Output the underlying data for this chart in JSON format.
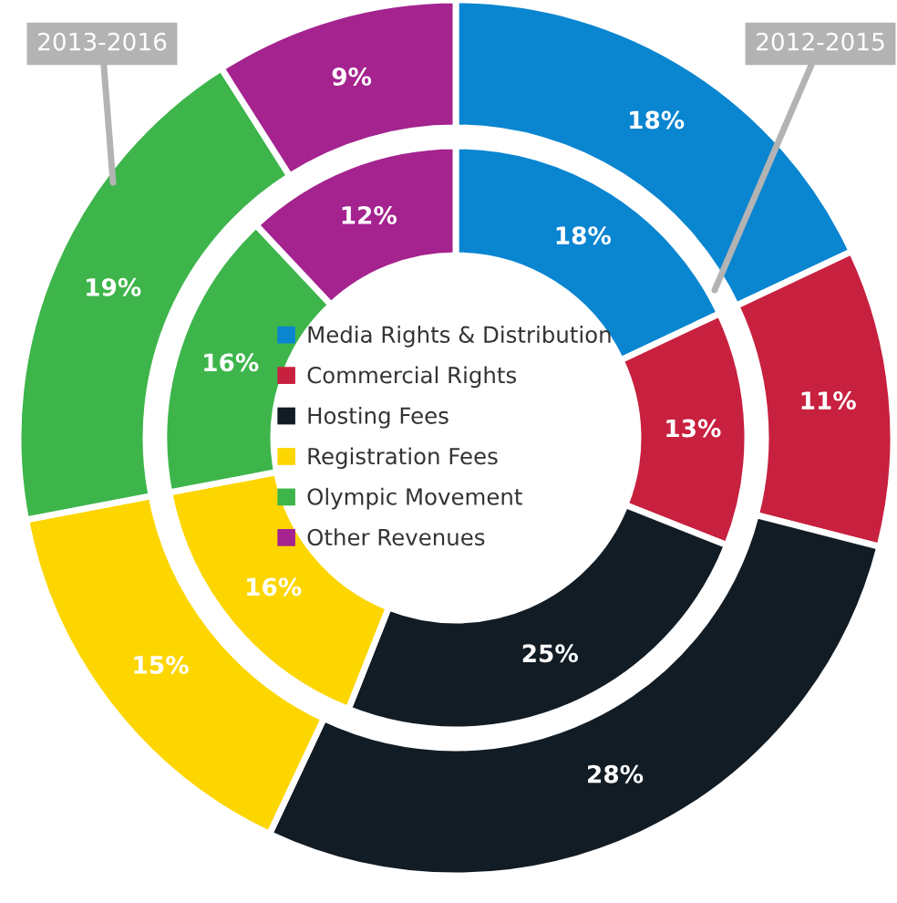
{
  "chart_data": {
    "type": "donut",
    "categories": [
      "Media Rights & Distribution",
      "Commercial Rights",
      "Hosting Fees",
      "Registration Fees",
      "Olympic Movement",
      "Other Revenues"
    ],
    "series": [
      {
        "values": [
          18,
          13,
          25,
          16,
          16,
          12
        ],
        "colors": [
          "#0a85d0",
          "#c8203f",
          "#121c24",
          "#fdd600",
          "#3db54a",
          "#a4238f"
        ]
      },
      {
        "values": [
          18,
          11,
          28,
          15,
          19,
          9
        ],
        "colors": [
          "#0a85d0",
          "#c8203f",
          "#121c24",
          "#fdd600",
          "#3db54a",
          "#a4238f"
        ]
      }
    ],
    "value_labels": [
      [
        "18%",
        "13%",
        "25%",
        "16%",
        "16%",
        "12%"
      ],
      [
        "18%",
        "11%",
        "28%",
        "15%",
        "19%",
        "9%"
      ]
    ],
    "annotations": [
      "2013-2016",
      "2012-2015"
    ],
    "legend": "center"
  }
}
